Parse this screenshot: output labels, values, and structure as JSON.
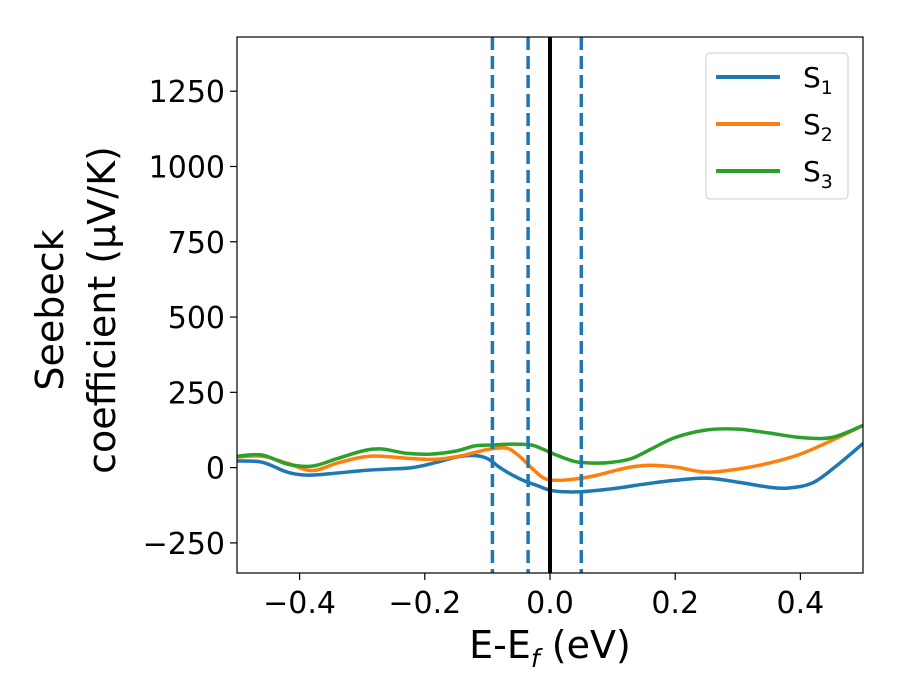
{
  "chart_data": {
    "type": "line",
    "xlabel": "E-E",
    "xlabel_sub": "f",
    "xlabel_unit": "(eV)",
    "ylabel_line1": "Seebeck",
    "ylabel_line2": "coefficient  (μV/K)",
    "xlim": [
      -0.5,
      0.5
    ],
    "ylim": [
      -350,
      1430
    ],
    "x_ticks": [
      -0.4,
      -0.2,
      0.0,
      0.2,
      0.4
    ],
    "x_tick_labels": [
      "−0.4",
      "−0.2",
      "0.0",
      "0.2",
      "0.4"
    ],
    "y_ticks": [
      -250,
      0,
      250,
      500,
      750,
      1000,
      1250
    ],
    "y_tick_labels": [
      "−250",
      "0",
      "250",
      "500",
      "750",
      "1000",
      "1250"
    ],
    "legend_position": "top-right",
    "vlines": [
      {
        "x": -0.092,
        "style": "dashed",
        "color": "#1f77b4"
      },
      {
        "x": -0.035,
        "style": "dashed",
        "color": "#1f77b4"
      },
      {
        "x": 0.0,
        "style": "solid",
        "color": "#000000"
      },
      {
        "x": 0.05,
        "style": "dashed",
        "color": "#1f77b4"
      }
    ],
    "series": [
      {
        "name": "S",
        "sub": "1",
        "color": "#1f77b4",
        "x": [
          -0.5,
          -0.46,
          -0.42,
          -0.39,
          -0.35,
          -0.3,
          -0.26,
          -0.22,
          -0.18,
          -0.15,
          -0.12,
          -0.1,
          -0.08,
          -0.06,
          -0.04,
          -0.02,
          0.0,
          0.02,
          0.05,
          0.1,
          0.15,
          0.2,
          0.25,
          0.3,
          0.35,
          0.38,
          0.42,
          0.46,
          0.5
        ],
        "y": [
          22,
          18,
          -15,
          -25,
          -20,
          -10,
          -5,
          0,
          18,
          35,
          40,
          30,
          0,
          -25,
          -45,
          -60,
          -75,
          -80,
          -80,
          -70,
          -55,
          -42,
          -35,
          -48,
          -65,
          -68,
          -50,
          10,
          80
        ]
      },
      {
        "name": "S",
        "sub": "2",
        "color": "#ff7f0e",
        "x": [
          -0.5,
          -0.46,
          -0.42,
          -0.38,
          -0.34,
          -0.3,
          -0.27,
          -0.22,
          -0.18,
          -0.14,
          -0.1,
          -0.07,
          -0.05,
          -0.03,
          -0.01,
          0.01,
          0.04,
          0.07,
          0.1,
          0.13,
          0.16,
          0.2,
          0.25,
          0.3,
          0.35,
          0.4,
          0.45,
          0.5
        ],
        "y": [
          35,
          38,
          15,
          -10,
          15,
          35,
          38,
          30,
          28,
          40,
          60,
          65,
          40,
          0,
          -35,
          -42,
          -38,
          -28,
          -12,
          2,
          8,
          2,
          -15,
          -5,
          15,
          45,
          90,
          140
        ]
      },
      {
        "name": "S",
        "sub": "3",
        "color": "#2ca02c",
        "x": [
          -0.5,
          -0.46,
          -0.42,
          -0.38,
          -0.34,
          -0.3,
          -0.27,
          -0.23,
          -0.19,
          -0.15,
          -0.12,
          -0.09,
          -0.06,
          -0.03,
          -0.01,
          0.01,
          0.04,
          0.07,
          0.1,
          0.13,
          0.16,
          0.2,
          0.25,
          0.3,
          0.35,
          0.4,
          0.45,
          0.5
        ],
        "y": [
          38,
          42,
          12,
          5,
          30,
          55,
          62,
          48,
          45,
          55,
          72,
          75,
          78,
          75,
          60,
          42,
          20,
          15,
          18,
          30,
          60,
          100,
          125,
          128,
          115,
          100,
          100,
          140
        ]
      }
    ]
  }
}
